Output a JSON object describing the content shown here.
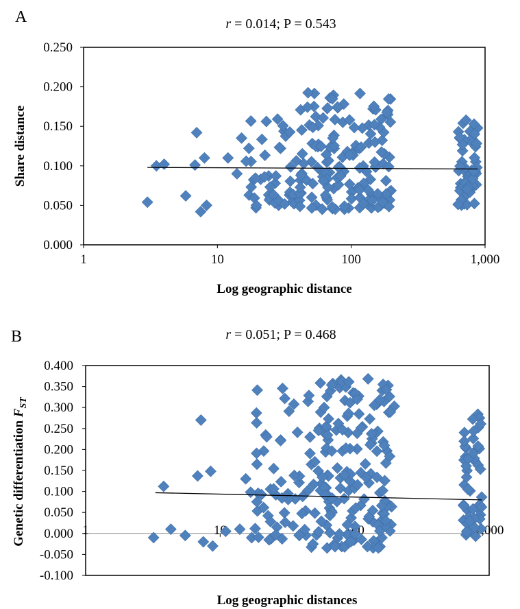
{
  "chart_data": [
    {
      "panel_label": "A",
      "type": "scatter",
      "title": "r = 0.014;  P = 0.543",
      "title_r": "r",
      "title_rest": " = 0.014;  P = 0.543",
      "xlabel": "Log geographic distance",
      "ylabel": "Share distance",
      "xscale": "log",
      "xlim": [
        1,
        1000
      ],
      "ylim": [
        0,
        0.25
      ],
      "xticks": [
        1,
        10,
        100,
        1000
      ],
      "xtick_labels": [
        "1",
        "10",
        "100",
        "1,000"
      ],
      "yticks": [
        0,
        0.05,
        0.1,
        0.15,
        0.2,
        0.25
      ],
      "ytick_labels": [
        "0.000",
        "0.050",
        "0.100",
        "0.150",
        "0.200",
        "0.250"
      ],
      "marker_color": "#4F81BD",
      "trendline": {
        "x": [
          3,
          880
        ],
        "y": [
          0.098,
          0.096
        ]
      },
      "clusters": [
        {
          "x": [
            3,
            3.5,
            4,
            5.8,
            6.8,
            7,
            7.5,
            8,
            8.3,
            12,
            14
          ],
          "y": [
            0.054,
            0.1,
            0.102,
            0.062,
            0.101,
            0.142,
            0.042,
            0.11,
            0.05,
            0.11,
            0.09
          ]
        },
        {
          "x": [
            15,
            40
          ],
          "y": [
            0.045,
            0.16
          ],
          "n": 45
        },
        {
          "x": [
            40,
            200
          ],
          "y": [
            0.045,
            0.195
          ],
          "n": 150
        },
        {
          "x": [
            620,
            880
          ],
          "y": [
            0.05,
            0.16
          ],
          "n": 55
        }
      ]
    },
    {
      "panel_label": "B",
      "type": "scatter",
      "title": "r = 0.051;  P = 0.468",
      "title_r": "r",
      "title_rest": " = 0.051;  P = 0.468",
      "xlabel": "Log geographic distances",
      "ylabel": "Genetic differentiation FST",
      "ylabel_main": "Genetic differentiation ",
      "ylabel_sym": "F",
      "ylabel_sub": "ST",
      "xscale": "log",
      "xlim": [
        1,
        1000
      ],
      "ylim": [
        -0.1,
        0.4
      ],
      "xticks": [
        1,
        10,
        100,
        1000
      ],
      "xtick_labels": [
        "1",
        "10",
        "100",
        "1,000"
      ],
      "yticks": [
        -0.1,
        -0.05,
        0,
        0.05,
        0.1,
        0.15,
        0.2,
        0.25,
        0.3,
        0.35,
        0.4
      ],
      "ytick_labels": [
        "-0.100",
        "-0.050",
        "0.000",
        "0.050",
        "0.100",
        "0.150",
        "0.200",
        "0.250",
        "0.300",
        "0.350",
        "0.400"
      ],
      "marker_color": "#4F81BD",
      "trendline": {
        "x": [
          3.3,
          880
        ],
        "y": [
          0.097,
          0.08
        ]
      },
      "clusters": [
        {
          "x": [
            3.2,
            3.8,
            4.3,
            5.5,
            6.8,
            7.2,
            7.5,
            8.5,
            8.8,
            11,
            14,
            15.5
          ],
          "y": [
            -0.01,
            0.112,
            0.01,
            -0.005,
            0.137,
            0.27,
            -0.02,
            0.148,
            -0.03,
            0.005,
            0.01,
            0.13
          ]
        },
        {
          "x": [
            16,
            45
          ],
          "y": [
            -0.02,
            0.35
          ],
          "n": 55
        },
        {
          "x": [
            45,
            200
          ],
          "y": [
            -0.035,
            0.37
          ],
          "n": 170
        },
        {
          "x": [
            640,
            880
          ],
          "y": [
            -0.01,
            0.3
          ],
          "n": 50
        }
      ]
    }
  ]
}
